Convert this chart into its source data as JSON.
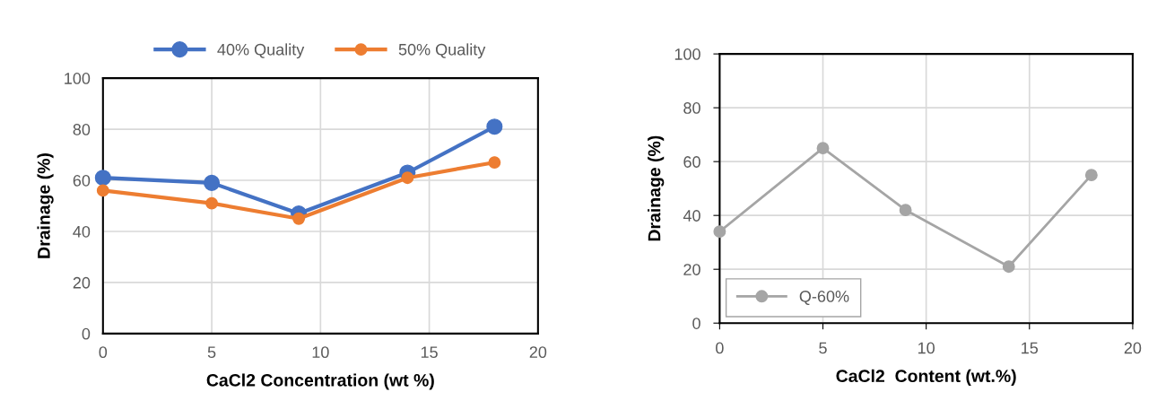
{
  "chart_data": [
    {
      "type": "line",
      "xlabel": "CaCl2 Concentration (wt %)",
      "ylabel": "Drainage (%)",
      "x": [
        0,
        5,
        9,
        14,
        18
      ],
      "series": [
        {
          "name": "40% Quality",
          "color": "#4472c4",
          "values": [
            61,
            59,
            47,
            63,
            81
          ]
        },
        {
          "name": "50% Quality",
          "color": "#ed7d31",
          "values": [
            56,
            51,
            45,
            61,
            67
          ]
        }
      ],
      "xlim": [
        0,
        20
      ],
      "xticks": [
        0,
        5,
        10,
        15,
        20
      ],
      "ylim": [
        0,
        100
      ],
      "yticks": [
        0,
        20,
        40,
        60,
        80,
        100
      ],
      "grid": true,
      "legend": "top",
      "marker": "circle"
    },
    {
      "type": "line",
      "xlabel": "CaCl2  Content (wt.%)",
      "ylabel": "Drainage (%)",
      "x": [
        0,
        5,
        9,
        14,
        18
      ],
      "series": [
        {
          "name": "Q-60%",
          "color": "#a5a5a5",
          "values": [
            34,
            65,
            42,
            21,
            55
          ]
        }
      ],
      "xlim": [
        0,
        20
      ],
      "xticks": [
        0,
        5,
        10,
        15,
        20
      ],
      "ylim": [
        0,
        100
      ],
      "yticks": [
        0,
        20,
        40,
        60,
        80,
        100
      ],
      "grid": true,
      "legend": "bottom left",
      "marker": "circle"
    }
  ]
}
